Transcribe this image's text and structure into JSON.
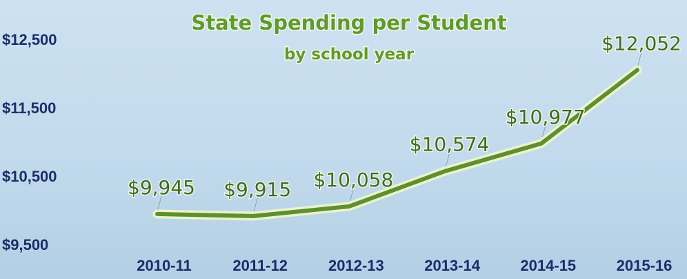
{
  "chart_data": {
    "type": "line",
    "title": "State Spending per Student",
    "subtitle": "by school year",
    "categories": [
      "2010-11",
      "2011-12",
      "2012-13",
      "2013-14",
      "2014-15",
      "2015-16"
    ],
    "series": [
      {
        "values": [
          9945,
          9915,
          10058,
          10574,
          10977,
          12052
        ]
      }
    ],
    "data_labels": [
      "$9,945",
      "$9,915",
      "$10,058",
      "$10,574",
      "$10,977",
      "$12,052"
    ],
    "y_ticks": [
      9500,
      10500,
      11500,
      12500
    ],
    "y_tick_labels": [
      "$9,500",
      "$10,500",
      "$11,500",
      "$12,500"
    ],
    "ylim": [
      9500,
      12500
    ],
    "grid": false,
    "legend": "none",
    "colors": {
      "line": "#5e8f31",
      "text": "#1d2d68",
      "title": "#5f9a2f"
    }
  }
}
